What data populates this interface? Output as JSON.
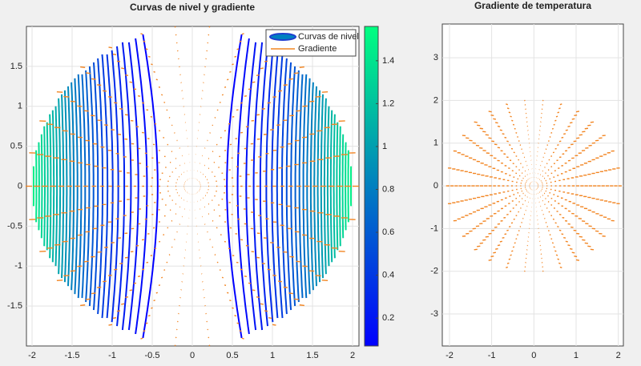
{
  "chart_data": [
    {
      "type": "contour",
      "title": "Curvas de nivel y gradiente",
      "xlim": [
        -2.07,
        2.08
      ],
      "xticks": [
        -2,
        -1.5,
        -1,
        -0.5,
        0,
        0.5,
        1,
        1.5,
        2
      ],
      "ylim": [
        -2,
        2
      ],
      "yticks": [
        -1.5,
        -1,
        -0.5,
        0,
        0.5,
        1,
        1.5
      ],
      "levels": [
        0.07,
        0.12,
        0.17,
        0.22,
        0.27,
        0.32,
        0.37,
        0.42,
        0.47,
        0.52,
        0.57,
        0.62,
        0.67,
        0.72,
        0.77,
        0.82,
        0.87,
        0.92,
        0.97,
        1.02,
        1.07,
        1.12,
        1.17,
        1.22,
        1.27,
        1.32,
        1.37,
        1.42,
        1.47
      ],
      "clim": [
        0.07,
        1.56
      ],
      "cticks": [
        0.2,
        0.4,
        0.6,
        0.8,
        1,
        1.2,
        1.4
      ],
      "colormap": [
        "#0000ff",
        "#00ff80"
      ],
      "series": [
        {
          "name": "Curvas de nivel",
          "color": "#1f3fcf"
        },
        {
          "name": "Gradiente",
          "color": "#f28522"
        }
      ],
      "grid": true
    },
    {
      "type": "quiver",
      "title": "Gradiente de temperatura",
      "xlim": [
        -2.17,
        2.12
      ],
      "xticks": [
        -2,
        -1,
        0,
        1,
        2
      ],
      "ylim": [
        -3.75,
        3.79
      ],
      "yticks": [
        -3,
        -2,
        -1,
        0,
        1,
        2,
        3
      ],
      "color": "#f28522",
      "grid": true
    }
  ]
}
